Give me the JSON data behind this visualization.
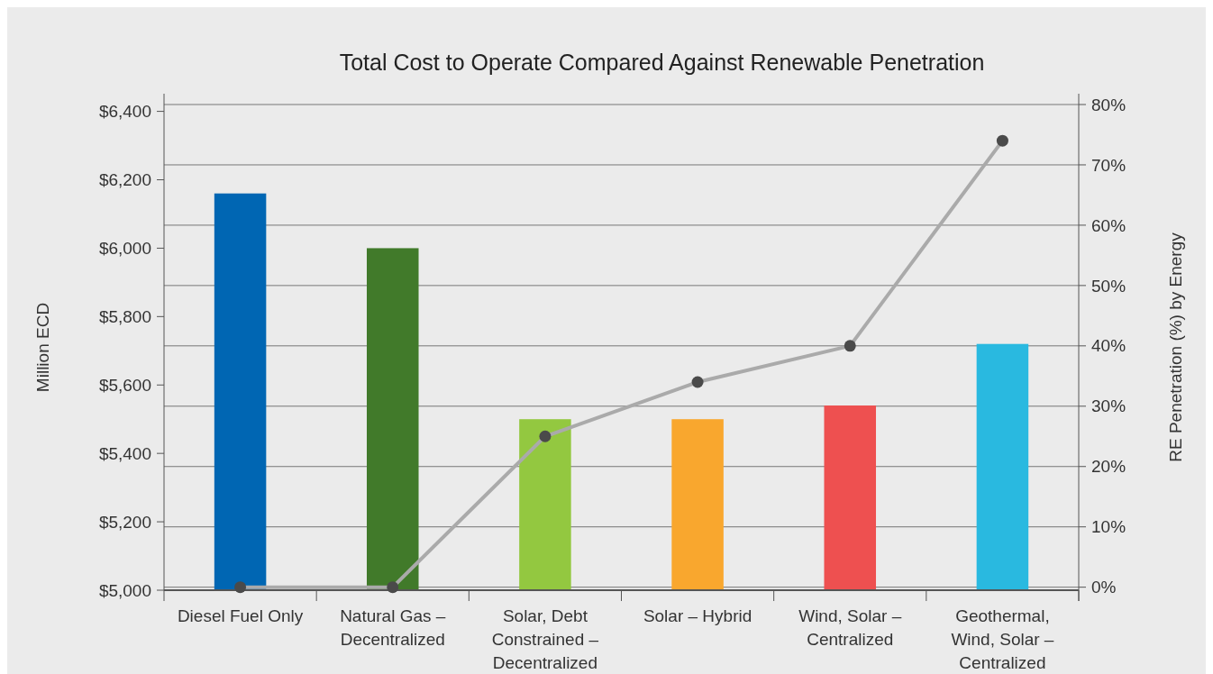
{
  "chart_data": {
    "type": "bar",
    "title": "Total Cost to Operate Compared Against Renewable Penetration",
    "ylabel": "Million ECD",
    "y2label": "RE Penetration (%) by Energy",
    "categories": [
      "Diesel Fuel Only",
      "Natural Gas – Decentralized",
      "Solar, Debt Constrained – Decentralized",
      "Solar – Hybrid",
      "Wind, Solar – Centralized",
      "Geothermal, Wind, Solar – Centralized"
    ],
    "series": [
      {
        "colors": [
          "#0066b3",
          "#417a2a",
          "#93c840",
          "#f9a72e",
          "#ee5050",
          "#29b9e0"
        ],
        "values": [
          6160,
          6000,
          5500,
          5500,
          5540,
          5720
        ]
      },
      {
        "type": "line",
        "axis": "y2",
        "color": "#aaaaaa",
        "values": [
          0,
          0,
          25,
          34,
          40,
          74
        ]
      }
    ],
    "ylim": [
      5000,
      6420
    ],
    "yticks": [
      {
        "value": 5000,
        "label": "$5,000"
      },
      {
        "value": 5200,
        "label": "$5,200"
      },
      {
        "value": 5400,
        "label": "$5,400"
      },
      {
        "value": 5600,
        "label": "$5,600"
      },
      {
        "value": 5800,
        "label": "$5,800"
      },
      {
        "value": 6000,
        "label": "$6,000"
      },
      {
        "value": 6200,
        "label": "$6,200"
      },
      {
        "value": 6400,
        "label": "$6,400"
      }
    ],
    "y2lim": [
      -0.5,
      80
    ],
    "y2ticks": [
      {
        "value": 0,
        "label": "0%"
      },
      {
        "value": 10,
        "label": "10%"
      },
      {
        "value": 20,
        "label": "20%"
      },
      {
        "value": 30,
        "label": "30%"
      },
      {
        "value": 40,
        "label": "40%"
      },
      {
        "value": 50,
        "label": "50%"
      },
      {
        "value": 60,
        "label": "60%"
      },
      {
        "value": 70,
        "label": "70%"
      },
      {
        "value": 80,
        "label": "80%"
      }
    ],
    "grid": "y2",
    "marker": "circle"
  }
}
